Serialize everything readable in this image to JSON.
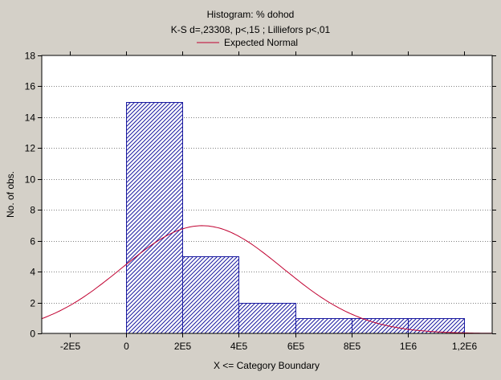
{
  "chart_data": {
    "type": "bar",
    "title": "Histogram: % dohod",
    "subtitle": "K-S d=,23308, p<,15 ; Lilliefors p<,01",
    "legend": {
      "position": "top",
      "entries": [
        {
          "label": "Expected Normal",
          "color": "#c00030"
        }
      ]
    },
    "xlabel": "X <= Category Boundary",
    "ylabel": "No. of obs.",
    "xlim": [
      -300000,
      1300000
    ],
    "ylim": [
      0,
      18
    ],
    "x_ticks": [
      {
        "value": -200000,
        "label": "-2E5"
      },
      {
        "value": 0,
        "label": "0"
      },
      {
        "value": 200000,
        "label": "2E5"
      },
      {
        "value": 400000,
        "label": "4E5"
      },
      {
        "value": 600000,
        "label": "6E5"
      },
      {
        "value": 800000,
        "label": "8E5"
      },
      {
        "value": 1000000,
        "label": "1E6"
      },
      {
        "value": 1200000,
        "label": "1,2E6"
      }
    ],
    "y_ticks": [
      0,
      2,
      4,
      6,
      8,
      10,
      12,
      14,
      16,
      18
    ],
    "grid": "horizontal dotted",
    "bins": [
      {
        "from": 0,
        "to": 200000,
        "count": 15
      },
      {
        "from": 200000,
        "to": 400000,
        "count": 5
      },
      {
        "from": 400000,
        "to": 600000,
        "count": 2
      },
      {
        "from": 600000,
        "to": 800000,
        "count": 1
      },
      {
        "from": 800000,
        "to": 1000000,
        "count": 1
      },
      {
        "from": 1000000,
        "to": 1200000,
        "count": 1
      }
    ],
    "expected_normal": {
      "mean": 270000,
      "sd": 286000,
      "n": 25,
      "bin_width": 200000,
      "color": "#c00030"
    },
    "bar_color": "#1a1aa0"
  }
}
